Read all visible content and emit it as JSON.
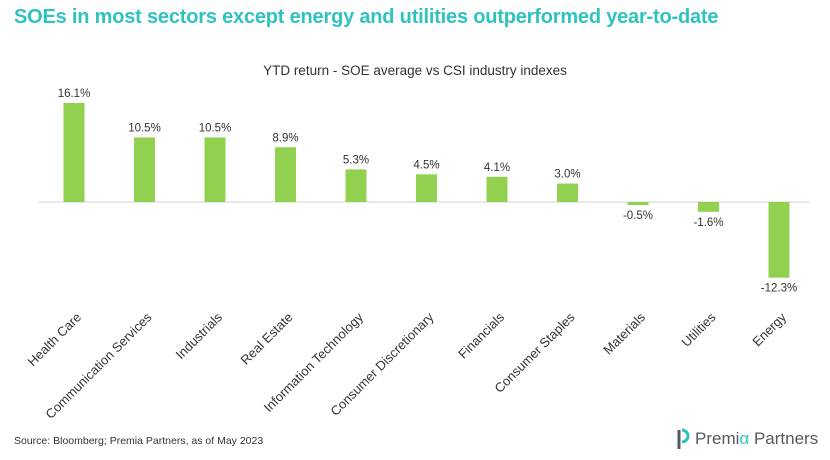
{
  "headline": "SOEs in most sectors except energy and utilities outperformed year-to-date",
  "chart_data": {
    "type": "bar",
    "title": "YTD return - SOE average vs CSI industry indexes",
    "categories": [
      "Health Care",
      "Communication Services",
      "Industrials",
      "Real Estate",
      "Information Technology",
      "Consumer Discretionary",
      "Financials",
      "Consumer Staples",
      "Materials",
      "Utilities",
      "Energy"
    ],
    "values": [
      16.1,
      10.5,
      10.5,
      8.9,
      5.3,
      4.5,
      4.1,
      3.0,
      -0.5,
      -1.6,
      -12.3
    ],
    "value_labels": [
      "16.1%",
      "10.5%",
      "10.5%",
      "8.9%",
      "5.3%",
      "4.5%",
      "4.1%",
      "3.0%",
      "-0.5%",
      "-1.6%",
      "-12.3%"
    ],
    "xlabel": "",
    "ylabel": "",
    "ylim": [
      -13,
      17
    ],
    "grid": false,
    "legend": "none",
    "bar_color": "#92d050"
  },
  "footer": {
    "source": "Source: Bloomberg; Premia Partners, as of May 2023"
  },
  "brand": {
    "name_prefix": "Premi",
    "name_alpha": "α",
    "name_suffix": " Partners",
    "accent_color": "#2fc3bf"
  }
}
